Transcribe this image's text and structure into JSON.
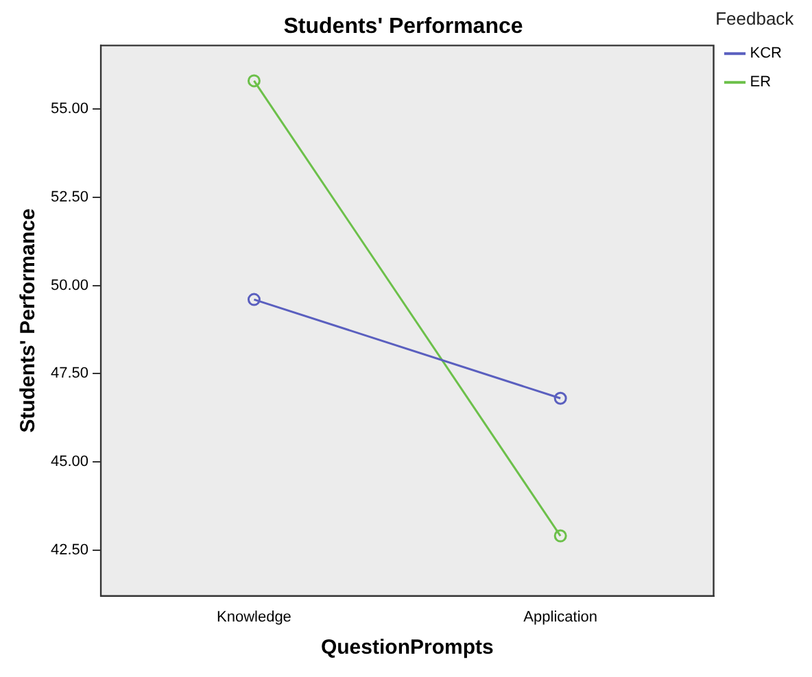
{
  "chart_data": {
    "type": "line",
    "title": "Students' Performance",
    "xlabel": "QuestionPrompts",
    "ylabel": "Students' Performance",
    "legend_title": "Feedback",
    "legend": "top right",
    "marker": "circle",
    "categories": [
      "Knowledge",
      "Application"
    ],
    "series": [
      {
        "name": "KCR",
        "color": "#5a5fbf",
        "values": [
          49.6,
          46.8
        ]
      },
      {
        "name": "ER",
        "color": "#6cc04a",
        "values": [
          55.8,
          42.9
        ]
      }
    ],
    "ylim": [
      41.2,
      56.8
    ],
    "yticks": [
      {
        "value": 42.5,
        "label": "42.50"
      },
      {
        "value": 45,
        "label": "45.00"
      },
      {
        "value": 47.5,
        "label": "47.50"
      },
      {
        "value": 50,
        "label": "50.00"
      },
      {
        "value": 52.5,
        "label": "52.50"
      },
      {
        "value": 55,
        "label": "55.00"
      }
    ]
  }
}
